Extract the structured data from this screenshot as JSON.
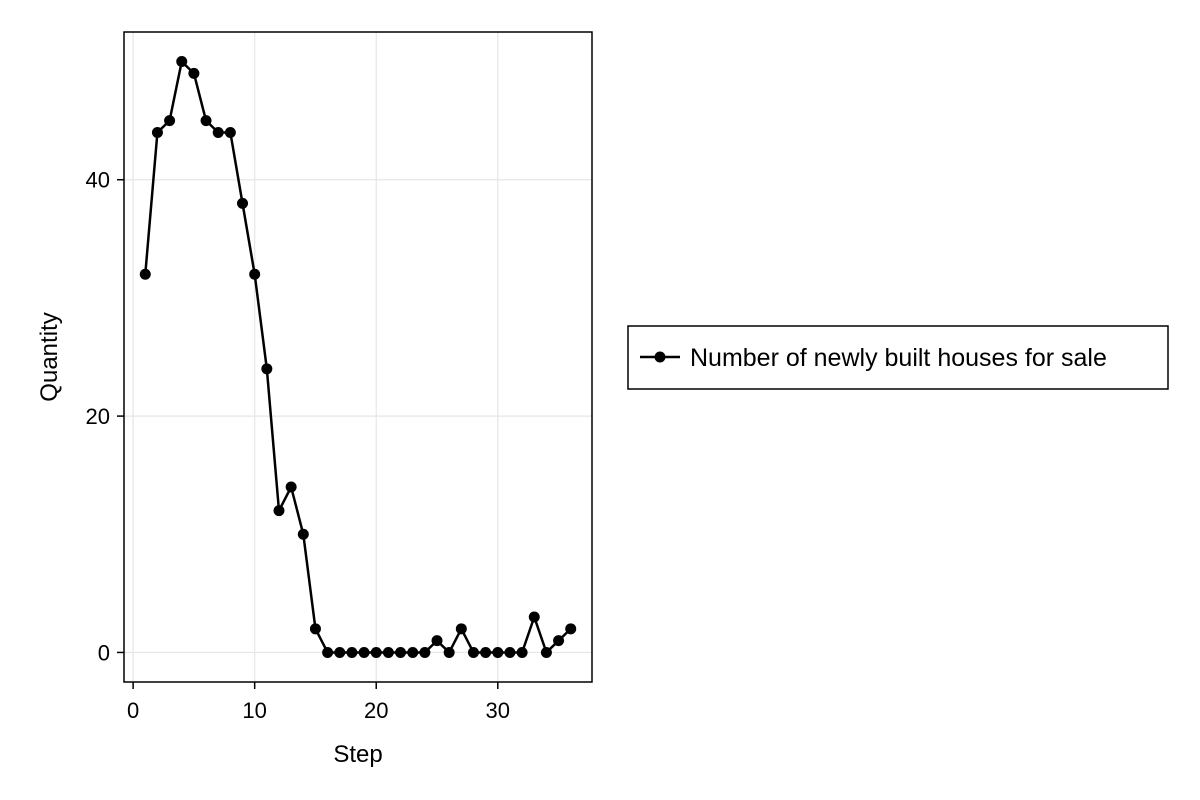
{
  "chart_data": {
    "type": "line",
    "title": "",
    "xlabel": "Step",
    "ylabel": "Quantity",
    "xlim": [
      -0.75,
      37.75
    ],
    "ylim": [
      -2.5,
      52.5
    ],
    "xticks": [
      0,
      10,
      20,
      30
    ],
    "yticks": [
      0,
      20,
      40
    ],
    "grid": true,
    "legend_position": "right",
    "series": [
      {
        "name": "Number of newly built houses for sale",
        "color": "#000000",
        "marker": "circle",
        "x": [
          1,
          2,
          3,
          4,
          5,
          6,
          7,
          8,
          9,
          10,
          11,
          12,
          13,
          14,
          15,
          16,
          17,
          18,
          19,
          20,
          21,
          22,
          23,
          24,
          25,
          26,
          27,
          28,
          29,
          30,
          31,
          32,
          33,
          34,
          35,
          36
        ],
        "y": [
          32,
          44,
          45,
          50,
          49,
          45,
          44,
          44,
          38,
          32,
          24,
          12,
          14,
          10,
          2,
          0,
          0,
          0,
          0,
          0,
          0,
          0,
          0,
          0,
          1,
          0,
          2,
          0,
          0,
          0,
          0,
          0,
          3,
          0,
          1,
          2
        ]
      }
    ]
  }
}
